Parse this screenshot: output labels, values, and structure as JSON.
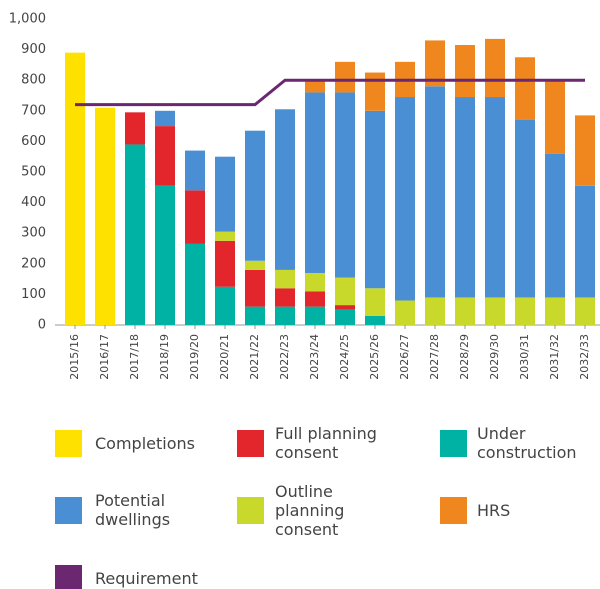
{
  "chart_data": {
    "type": "bar",
    "categories": [
      "2015/16",
      "2016/17",
      "2017/18",
      "2018/19",
      "2019/20",
      "2020/21",
      "2021/22",
      "2022/23",
      "2023/24",
      "2024/25",
      "2025/26",
      "2026/27",
      "2027/28",
      "2028/29",
      "2029/30",
      "2030/31",
      "2031/32",
      "2032/33"
    ],
    "series": [
      {
        "name": "Completions",
        "color": "#ffe100",
        "values": [
          890,
          710,
          null,
          null,
          null,
          null,
          null,
          null,
          null,
          null,
          null,
          null,
          null,
          null,
          null,
          null,
          null,
          null
        ]
      },
      {
        "name": "Full planning consent",
        "color": "#e3262b",
        "values": [
          null,
          null,
          105,
          195,
          175,
          150,
          120,
          60,
          50,
          15,
          null,
          null,
          null,
          null,
          null,
          null,
          null,
          null
        ]
      },
      {
        "name": "Under construction",
        "color": "#00b2a4",
        "values": [
          null,
          null,
          590,
          455,
          265,
          125,
          60,
          60,
          60,
          50,
          30,
          null,
          null,
          null,
          null,
          null,
          null,
          null
        ]
      },
      {
        "name": "Potential dwellings",
        "color": "#4a8fd4",
        "values": [
          null,
          null,
          null,
          50,
          130,
          245,
          425,
          525,
          590,
          605,
          580,
          665,
          690,
          655,
          655,
          580,
          470,
          365
        ]
      },
      {
        "name": "Outline planning consent",
        "color": "#c8d92b",
        "values": [
          null,
          null,
          null,
          null,
          null,
          30,
          30,
          60,
          60,
          90,
          90,
          80,
          90,
          90,
          90,
          90,
          90,
          90
        ]
      },
      {
        "name": "HRS",
        "color": "#f0871e",
        "values": [
          null,
          null,
          null,
          null,
          null,
          null,
          null,
          null,
          40,
          100,
          125,
          115,
          150,
          170,
          190,
          205,
          240,
          230
        ]
      }
    ],
    "line_series": [
      {
        "name": "Requirement",
        "color": "#6b2770",
        "values": [
          720,
          720,
          720,
          720,
          720,
          720,
          720,
          800,
          800,
          800,
          800,
          800,
          800,
          800,
          800,
          800,
          800,
          800
        ]
      }
    ],
    "ylim": [
      0,
      1000
    ],
    "yticks": [
      0,
      100,
      200,
      300,
      400,
      500,
      600,
      700,
      800,
      900,
      {
        "value": 1000,
        "label": "1,000"
      }
    ]
  }
}
